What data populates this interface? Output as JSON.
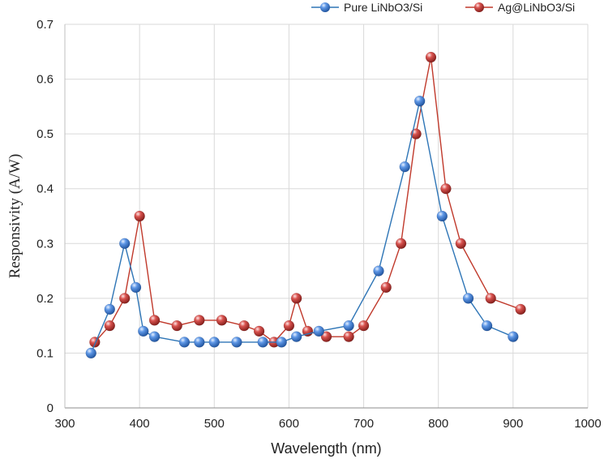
{
  "chart_data": {
    "type": "line",
    "xlabel": "Wavelength (nm)",
    "ylabel": "Responsivity (A/W)",
    "xlim": [
      300,
      1000
    ],
    "ylim": [
      0,
      0.7
    ],
    "x_ticks": [
      300,
      400,
      500,
      600,
      700,
      800,
      900,
      1000
    ],
    "y_ticks": [
      0,
      0.1,
      0.2,
      0.3,
      0.4,
      0.5,
      0.6,
      0.7
    ],
    "x_tick_labels": [
      "300",
      "400",
      "500",
      "600",
      "700",
      "800",
      "900",
      "1000"
    ],
    "y_tick_labels": [
      "0",
      "0.1",
      "0.2",
      "0.3",
      "0.4",
      "0.5",
      "0.6",
      "0.7"
    ],
    "grid": true,
    "legend_position": "top-right",
    "series": [
      {
        "name": "Pure LiNbO3/Si",
        "color": "#2e75b6",
        "marker_color": "#3c7fd0",
        "points": [
          [
            335,
            0.1
          ],
          [
            360,
            0.18
          ],
          [
            380,
            0.3
          ],
          [
            395,
            0.22
          ],
          [
            405,
            0.14
          ],
          [
            420,
            0.13
          ],
          [
            460,
            0.12
          ],
          [
            480,
            0.12
          ],
          [
            500,
            0.12
          ],
          [
            530,
            0.12
          ],
          [
            565,
            0.12
          ],
          [
            590,
            0.12
          ],
          [
            610,
            0.13
          ],
          [
            640,
            0.14
          ],
          [
            680,
            0.15
          ],
          [
            720,
            0.25
          ],
          [
            755,
            0.44
          ],
          [
            775,
            0.56
          ],
          [
            805,
            0.35
          ],
          [
            840,
            0.2
          ],
          [
            865,
            0.15
          ],
          [
            900,
            0.13
          ]
        ]
      },
      {
        "name": "Ag@LiNbO3/Si",
        "color": "#c0392b",
        "marker_color": "#c9302c",
        "points": [
          [
            340,
            0.12
          ],
          [
            360,
            0.15
          ],
          [
            380,
            0.2
          ],
          [
            400,
            0.35
          ],
          [
            420,
            0.16
          ],
          [
            450,
            0.15
          ],
          [
            480,
            0.16
          ],
          [
            510,
            0.16
          ],
          [
            540,
            0.15
          ],
          [
            560,
            0.14
          ],
          [
            580,
            0.12
          ],
          [
            600,
            0.15
          ],
          [
            610,
            0.2
          ],
          [
            625,
            0.14
          ],
          [
            650,
            0.13
          ],
          [
            680,
            0.13
          ],
          [
            700,
            0.15
          ],
          [
            730,
            0.22
          ],
          [
            750,
            0.3
          ],
          [
            770,
            0.5
          ],
          [
            790,
            0.64
          ],
          [
            810,
            0.4
          ],
          [
            830,
            0.3
          ],
          [
            870,
            0.2
          ],
          [
            910,
            0.18
          ]
        ]
      }
    ]
  }
}
